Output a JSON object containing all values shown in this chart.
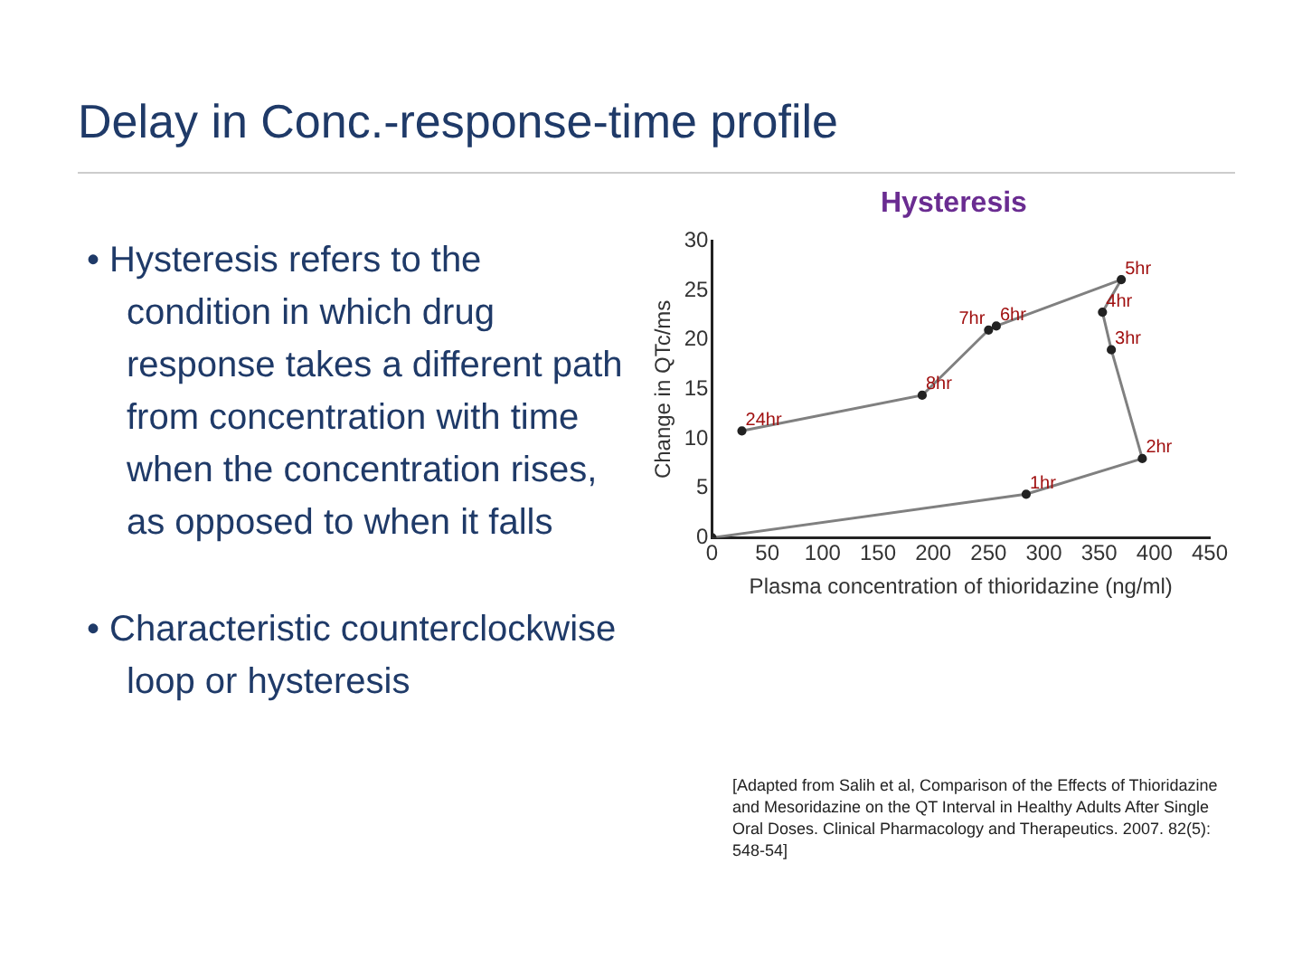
{
  "chart_data": {
    "type": "line",
    "title": "Delay in Conc.-response-time profile",
    "subtitle": "Hysteresis",
    "xlabel": "Plasma concentration of thioridazine (ng/ml)",
    "ylabel": "Change in QTc/ms",
    "x": [
      0,
      284,
      389,
      361,
      353,
      370,
      257,
      250,
      190,
      27
    ],
    "series": [
      {
        "color": "#808080",
        "values": [
          0,
          4.4,
          8.0,
          19.0,
          22.8,
          26.1,
          21.4,
          21.0,
          14.4,
          10.8
        ]
      }
    ],
    "xlim": [
      0,
      450
    ],
    "xticks": [
      0,
      50,
      100,
      150,
      200,
      250,
      300,
      350,
      400,
      450
    ],
    "ylim": [
      0,
      30
    ],
    "yticks": [
      0,
      5,
      10,
      15,
      20,
      25,
      30
    ],
    "grid": false,
    "legend": false,
    "marker": "circle",
    "line_style": "solid",
    "annotations": [
      "• Hysteresis refers to the condition in which drug response takes a different path from concentration with time when the concentration rises, as opposed to when it falls",
      "• Characteristic counterclockwise loop or hysteresis",
      {
        "text": "1hr",
        "x": 284,
        "y": 4.4
      },
      {
        "text": "2hr",
        "x": 389,
        "y": 8.0
      },
      {
        "text": "3hr",
        "x": 361,
        "y": 19.0
      },
      {
        "text": "4hr",
        "x": 353,
        "y": 22.8
      },
      {
        "text": "5hr",
        "x": 370,
        "y": 26.1
      },
      {
        "text": "6hr",
        "x": 257,
        "y": 21.4
      },
      {
        "text": "7hr",
        "x": 250,
        "y": 21.0
      },
      {
        "text": "8hr",
        "x": 190,
        "y": 14.4
      },
      {
        "text": "24hr",
        "x": 27,
        "y": 10.8
      },
      "[Adapted from Salih et al, Comparison of the Effects of Thioridazine and Mesoridazine on the QT Interval in Healthy Adults After Single Oral Doses. Clinical Pharmacology and Therapeutics. 2007. 82(5): 548-54]"
    ]
  }
}
